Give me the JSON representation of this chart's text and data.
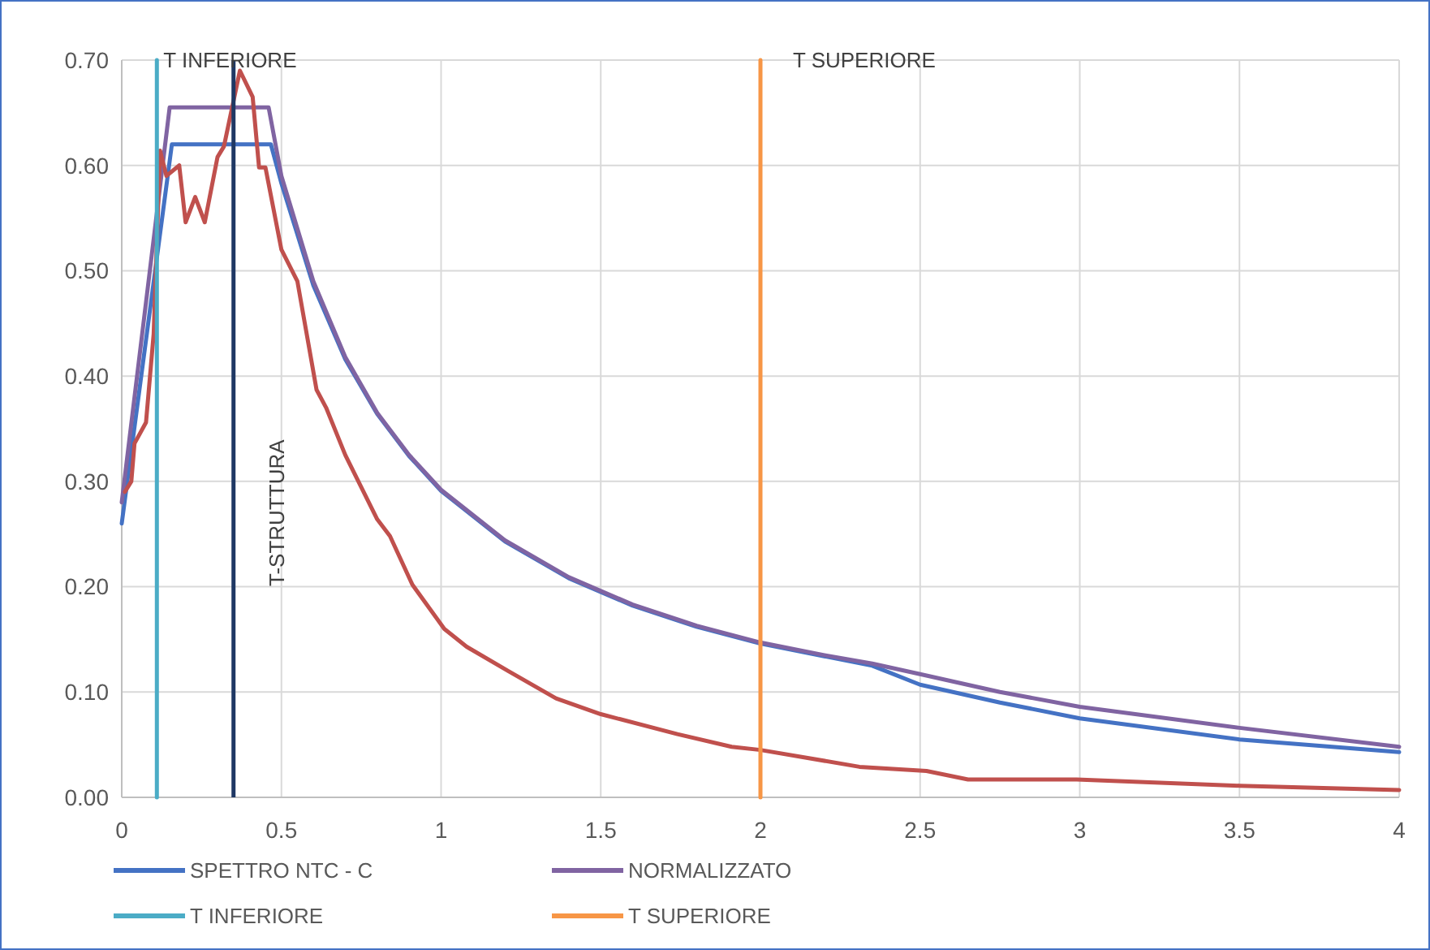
{
  "chart_data": {
    "type": "line",
    "xlim": [
      0,
      4
    ],
    "xticks": [
      0,
      0.5,
      1,
      1.5,
      2,
      2.5,
      3,
      3.5,
      4
    ],
    "ylim": [
      0,
      0.7
    ],
    "yticks": [
      {
        "value": 0,
        "label": "0.00"
      },
      {
        "value": 0.1,
        "label": "0.10"
      },
      {
        "value": 0.2,
        "label": "0.20"
      },
      {
        "value": 0.3,
        "label": "0.30"
      },
      {
        "value": 0.4,
        "label": "0.40"
      },
      {
        "value": 0.5,
        "label": "0.50"
      },
      {
        "value": 0.6,
        "label": "0.60"
      },
      {
        "value": 0.7,
        "label": "0.70"
      }
    ],
    "grid": true,
    "legend": "bottom",
    "marker": "none",
    "line_style": "solid",
    "series": [
      {
        "name": "SPETTRO NTC - C",
        "color": "#4472c4",
        "x": [
          0,
          0.157,
          0.3,
          0.467,
          0.5,
          0.6,
          0.7,
          0.8,
          0.9,
          1,
          1.2,
          1.4,
          1.6,
          1.8,
          2,
          2.2,
          2.35,
          2.5,
          2.75,
          3,
          3.5,
          4
        ],
        "values": [
          0.26,
          0.62,
          0.62,
          0.62,
          0.583,
          0.486,
          0.416,
          0.364,
          0.324,
          0.291,
          0.243,
          0.208,
          0.182,
          0.162,
          0.146,
          0.134,
          0.125,
          0.107,
          0.09,
          0.075,
          0.055,
          0.043
        ]
      },
      {
        "name": "NORMALIZZATO",
        "color": "#8064a2",
        "x": [
          0,
          0.15,
          0.3,
          0.46,
          0.5,
          0.6,
          0.7,
          0.8,
          0.9,
          1,
          1.2,
          1.4,
          1.6,
          1.8,
          2,
          2.2,
          2.35,
          2.5,
          2.75,
          3,
          3.5,
          4
        ],
        "values": [
          0.28,
          0.655,
          0.655,
          0.655,
          0.59,
          0.49,
          0.418,
          0.365,
          0.325,
          0.292,
          0.244,
          0.209,
          0.183,
          0.163,
          0.147,
          0.135,
          0.127,
          0.117,
          0.1,
          0.086,
          0.066,
          0.048
        ]
      },
      {
        "color": "#c0504d",
        "x": [
          0.01,
          0.03,
          0.04,
          0.076,
          0.1,
          0.12,
          0.14,
          0.18,
          0.2,
          0.23,
          0.26,
          0.3,
          0.32,
          0.37,
          0.41,
          0.43,
          0.45,
          0.5,
          0.55,
          0.61,
          0.64,
          0.7,
          0.8,
          0.84,
          0.91,
          1.01,
          1.08,
          1.21,
          1.36,
          1.5,
          1.74,
          1.91,
          2,
          2.31,
          2.52,
          2.65,
          2.99,
          3.5,
          4
        ],
        "values": [
          0.29,
          0.3,
          0.336,
          0.356,
          0.44,
          0.614,
          0.59,
          0.6,
          0.546,
          0.57,
          0.546,
          0.608,
          0.618,
          0.69,
          0.665,
          0.598,
          0.598,
          0.52,
          0.49,
          0.387,
          0.37,
          0.325,
          0.264,
          0.248,
          0.202,
          0.16,
          0.143,
          0.12,
          0.094,
          0.079,
          0.06,
          0.048,
          0.045,
          0.029,
          0.025,
          0.017,
          0.017,
          0.011,
          0.007
        ]
      },
      {
        "name": "T INFERIORE",
        "color": "#4bacc6",
        "x": [
          0.11,
          0.11
        ],
        "values": [
          0,
          0.7
        ]
      },
      {
        "name": "T SUPERIORE",
        "color": "#f79646",
        "x": [
          2,
          2
        ],
        "values": [
          0,
          0.7
        ]
      }
    ],
    "ref_lines": [
      {
        "axis": "x",
        "value": 0.35,
        "label": "T-STRUTTURA",
        "color": "#1f3864"
      }
    ],
    "annotations": [
      "T INFERIORE",
      "T SUPERIORE"
    ]
  }
}
